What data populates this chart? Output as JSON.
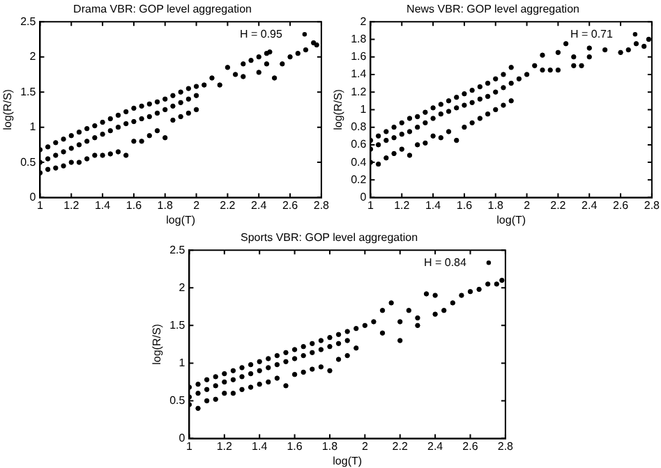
{
  "chart_data": [
    {
      "type": "scatter",
      "title": "Drama VBR: GOP level aggregation",
      "xlabel": "log(T)",
      "ylabel": "log(R/S)",
      "xlim": [
        1,
        2.8
      ],
      "xticks": [
        1,
        1.2,
        1.4,
        1.6,
        1.8,
        2,
        2.2,
        2.4,
        2.6,
        2.8
      ],
      "ylim": [
        0,
        2.5
      ],
      "yticks": [
        0,
        0.5,
        1,
        1.5,
        2,
        2.5
      ],
      "legend": "top right",
      "marker": "circle",
      "series": [
        {
          "name": "H = 0.95",
          "color": "#000000",
          "x": [
            1,
            1,
            1,
            1.05,
            1.05,
            1.05,
            1.1,
            1.1,
            1.1,
            1.15,
            1.15,
            1.15,
            1.2,
            1.2,
            1.2,
            1.25,
            1.25,
            1.25,
            1.3,
            1.3,
            1.3,
            1.35,
            1.35,
            1.35,
            1.4,
            1.4,
            1.4,
            1.45,
            1.45,
            1.45,
            1.5,
            1.5,
            1.5,
            1.55,
            1.55,
            1.55,
            1.6,
            1.6,
            1.6,
            1.65,
            1.65,
            1.65,
            1.7,
            1.7,
            1.7,
            1.75,
            1.75,
            1.75,
            1.8,
            1.8,
            1.8,
            1.85,
            1.85,
            1.85,
            1.9,
            1.9,
            1.9,
            1.95,
            1.95,
            1.95,
            2,
            2,
            2,
            2.05,
            2.1,
            2.15,
            2.2,
            2.25,
            2.3,
            2.35,
            2.4,
            2.45,
            2.47,
            2.3,
            2.4,
            2.45,
            2.5,
            2.55,
            2.6,
            2.65,
            2.7,
            2.75,
            2.77
          ],
          "values": [
            0.35,
            0.5,
            0.68,
            0.4,
            0.55,
            0.72,
            0.42,
            0.6,
            0.78,
            0.45,
            0.65,
            0.83,
            0.5,
            0.7,
            0.88,
            0.5,
            0.75,
            0.93,
            0.55,
            0.8,
            0.98,
            0.6,
            0.85,
            1.02,
            0.6,
            0.9,
            1.07,
            0.62,
            0.95,
            1.12,
            0.65,
            1,
            1.17,
            0.6,
            1.05,
            1.22,
            0.8,
            1.08,
            1.27,
            0.8,
            1.12,
            1.3,
            0.88,
            1.15,
            1.33,
            0.95,
            1.2,
            1.36,
            0.85,
            1.25,
            1.4,
            1.1,
            1.3,
            1.45,
            1.15,
            1.35,
            1.5,
            1.2,
            1.4,
            1.55,
            1.25,
            1.45,
            1.58,
            1.6,
            1.7,
            1.6,
            1.85,
            1.75,
            1.9,
            1.95,
            2,
            2.05,
            2.07,
            1.72,
            1.78,
            1.9,
            1.7,
            1.9,
            2,
            2.05,
            2.1,
            2.2,
            2.17
          ]
        }
      ]
    },
    {
      "type": "scatter",
      "title": "News VBR: GOP level aggregation",
      "xlabel": "log(T)",
      "ylabel": "log(R/S)",
      "xlim": [
        1,
        2.8
      ],
      "xticks": [
        1,
        1.2,
        1.4,
        1.6,
        1.8,
        2,
        2.2,
        2.4,
        2.6,
        2.8
      ],
      "ylim": [
        0,
        2
      ],
      "yticks": [
        0,
        0.2,
        0.4,
        0.6,
        0.8,
        1,
        1.2,
        1.4,
        1.6,
        1.8,
        2
      ],
      "legend": "top right",
      "marker": "circle",
      "series": [
        {
          "name": "H = 0.71",
          "color": "#000000",
          "x": [
            1,
            1,
            1,
            1.05,
            1.05,
            1.05,
            1.1,
            1.1,
            1.1,
            1.15,
            1.15,
            1.15,
            1.2,
            1.2,
            1.2,
            1.25,
            1.25,
            1.25,
            1.3,
            1.3,
            1.3,
            1.35,
            1.35,
            1.35,
            1.4,
            1.4,
            1.4,
            1.45,
            1.45,
            1.45,
            1.5,
            1.5,
            1.5,
            1.55,
            1.55,
            1.55,
            1.6,
            1.6,
            1.6,
            1.65,
            1.65,
            1.65,
            1.7,
            1.7,
            1.7,
            1.75,
            1.75,
            1.75,
            1.8,
            1.8,
            1.8,
            1.85,
            1.85,
            1.85,
            1.9,
            1.9,
            1.9,
            1.95,
            2,
            2.05,
            2.1,
            2.15,
            2.2,
            2.25,
            2.3,
            2.35,
            2.4,
            2.1,
            2.2,
            2.3,
            2.4,
            2.5,
            2.6,
            2.65,
            2.7,
            2.75,
            2.78
          ],
          "values": [
            0.4,
            0.55,
            0.65,
            0.38,
            0.6,
            0.7,
            0.45,
            0.65,
            0.75,
            0.5,
            0.68,
            0.8,
            0.55,
            0.72,
            0.85,
            0.48,
            0.75,
            0.9,
            0.6,
            0.8,
            0.92,
            0.62,
            0.85,
            0.97,
            0.7,
            0.9,
            1.02,
            0.68,
            0.95,
            1.06,
            0.75,
            0.98,
            1.1,
            0.65,
            1.02,
            1.14,
            0.8,
            1.05,
            1.18,
            0.85,
            1.08,
            1.22,
            0.9,
            1.12,
            1.26,
            0.95,
            1.15,
            1.3,
            1,
            1.2,
            1.35,
            1.05,
            1.25,
            1.4,
            1.1,
            1.3,
            1.48,
            1.35,
            1.4,
            1.5,
            1.62,
            1.45,
            1.65,
            1.75,
            1.6,
            1.5,
            1.7,
            1.45,
            1.45,
            1.5,
            1.6,
            1.68,
            1.65,
            1.68,
            1.75,
            1.72,
            1.8
          ]
        }
      ]
    },
    {
      "type": "scatter",
      "title": "Sports VBR: GOP level aggregation",
      "xlabel": "log(T)",
      "ylabel": "log(R/S)",
      "xlim": [
        1,
        2.8
      ],
      "xticks": [
        1,
        1.2,
        1.4,
        1.6,
        1.8,
        2,
        2.2,
        2.4,
        2.6,
        2.8
      ],
      "ylim": [
        0,
        2.5
      ],
      "yticks": [
        0,
        0.5,
        1,
        1.5,
        2,
        2.5
      ],
      "legend": "top right",
      "marker": "circle",
      "series": [
        {
          "name": "H = 0.84",
          "color": "#000000",
          "x": [
            1,
            1,
            1,
            1.05,
            1.05,
            1.05,
            1.1,
            1.1,
            1.1,
            1.15,
            1.15,
            1.15,
            1.2,
            1.2,
            1.2,
            1.25,
            1.25,
            1.25,
            1.3,
            1.3,
            1.3,
            1.35,
            1.35,
            1.35,
            1.4,
            1.4,
            1.4,
            1.45,
            1.45,
            1.45,
            1.5,
            1.5,
            1.5,
            1.55,
            1.55,
            1.55,
            1.6,
            1.6,
            1.6,
            1.65,
            1.65,
            1.65,
            1.7,
            1.7,
            1.7,
            1.75,
            1.75,
            1.75,
            1.8,
            1.8,
            1.8,
            1.85,
            1.85,
            1.85,
            1.9,
            1.9,
            1.9,
            1.95,
            1.95,
            2,
            2.05,
            2.1,
            2.15,
            2.2,
            2.25,
            2.3,
            2.35,
            2.4,
            2.1,
            2.2,
            2.3,
            2.4,
            2.45,
            2.5,
            2.55,
            2.6,
            2.65,
            2.7,
            2.75,
            2.78
          ],
          "values": [
            0.45,
            0.55,
            0.68,
            0.4,
            0.6,
            0.72,
            0.5,
            0.65,
            0.78,
            0.52,
            0.7,
            0.82,
            0.6,
            0.75,
            0.86,
            0.6,
            0.78,
            0.9,
            0.65,
            0.82,
            0.94,
            0.68,
            0.86,
            0.98,
            0.72,
            0.9,
            1.02,
            0.75,
            0.94,
            1.06,
            0.8,
            0.98,
            1.1,
            0.7,
            1.02,
            1.14,
            0.85,
            1.06,
            1.18,
            0.88,
            1.1,
            1.22,
            0.92,
            1.14,
            1.26,
            0.95,
            1.18,
            1.3,
            0.9,
            1.22,
            1.34,
            1.05,
            1.26,
            1.38,
            1.1,
            1.3,
            1.42,
            1.2,
            1.46,
            1.5,
            1.55,
            1.7,
            1.8,
            1.55,
            1.7,
            1.6,
            1.92,
            1.9,
            1.4,
            1.3,
            1.5,
            1.65,
            1.7,
            1.8,
            1.9,
            1.95,
            1.98,
            2.05,
            2.05,
            2.1
          ]
        }
      ]
    }
  ]
}
